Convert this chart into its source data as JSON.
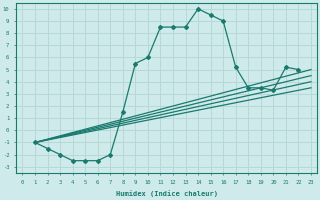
{
  "xlabel": "Humidex (Indice chaleur)",
  "ylabel": "",
  "bg_color": "#ceeaea",
  "line_color": "#1a7a6e",
  "grid_color": "#b8d8d8",
  "xlim": [
    -0.5,
    23.5
  ],
  "ylim": [
    -3.5,
    10.5
  ],
  "xticks": [
    0,
    1,
    2,
    3,
    4,
    5,
    6,
    7,
    8,
    9,
    10,
    11,
    12,
    13,
    14,
    15,
    16,
    17,
    18,
    19,
    20,
    21,
    22,
    23
  ],
  "yticks": [
    -3,
    -2,
    -1,
    0,
    1,
    2,
    3,
    4,
    5,
    6,
    7,
    8,
    9,
    10
  ],
  "main_line": {
    "x": [
      1,
      2,
      3,
      4,
      5,
      6,
      7,
      8,
      9,
      10,
      11,
      12,
      13,
      14,
      15,
      16,
      17,
      18,
      19,
      20,
      21,
      22
    ],
    "y": [
      -1,
      -1.5,
      -2,
      -2.5,
      -2.5,
      -2.5,
      -2,
      1.5,
      5.5,
      6,
      8.5,
      8.5,
      8.5,
      10,
      9.5,
      9,
      5.2,
      3.5,
      3.5,
      3.3,
      5.2,
      5.0
    ]
  },
  "straight_lines": [
    {
      "x": [
        1,
        23
      ],
      "y": [
        -1,
        5.0
      ]
    },
    {
      "x": [
        1,
        23
      ],
      "y": [
        -1,
        4.5
      ]
    },
    {
      "x": [
        1,
        23
      ],
      "y": [
        -1,
        4.0
      ]
    },
    {
      "x": [
        1,
        23
      ],
      "y": [
        -1,
        3.5
      ]
    }
  ]
}
